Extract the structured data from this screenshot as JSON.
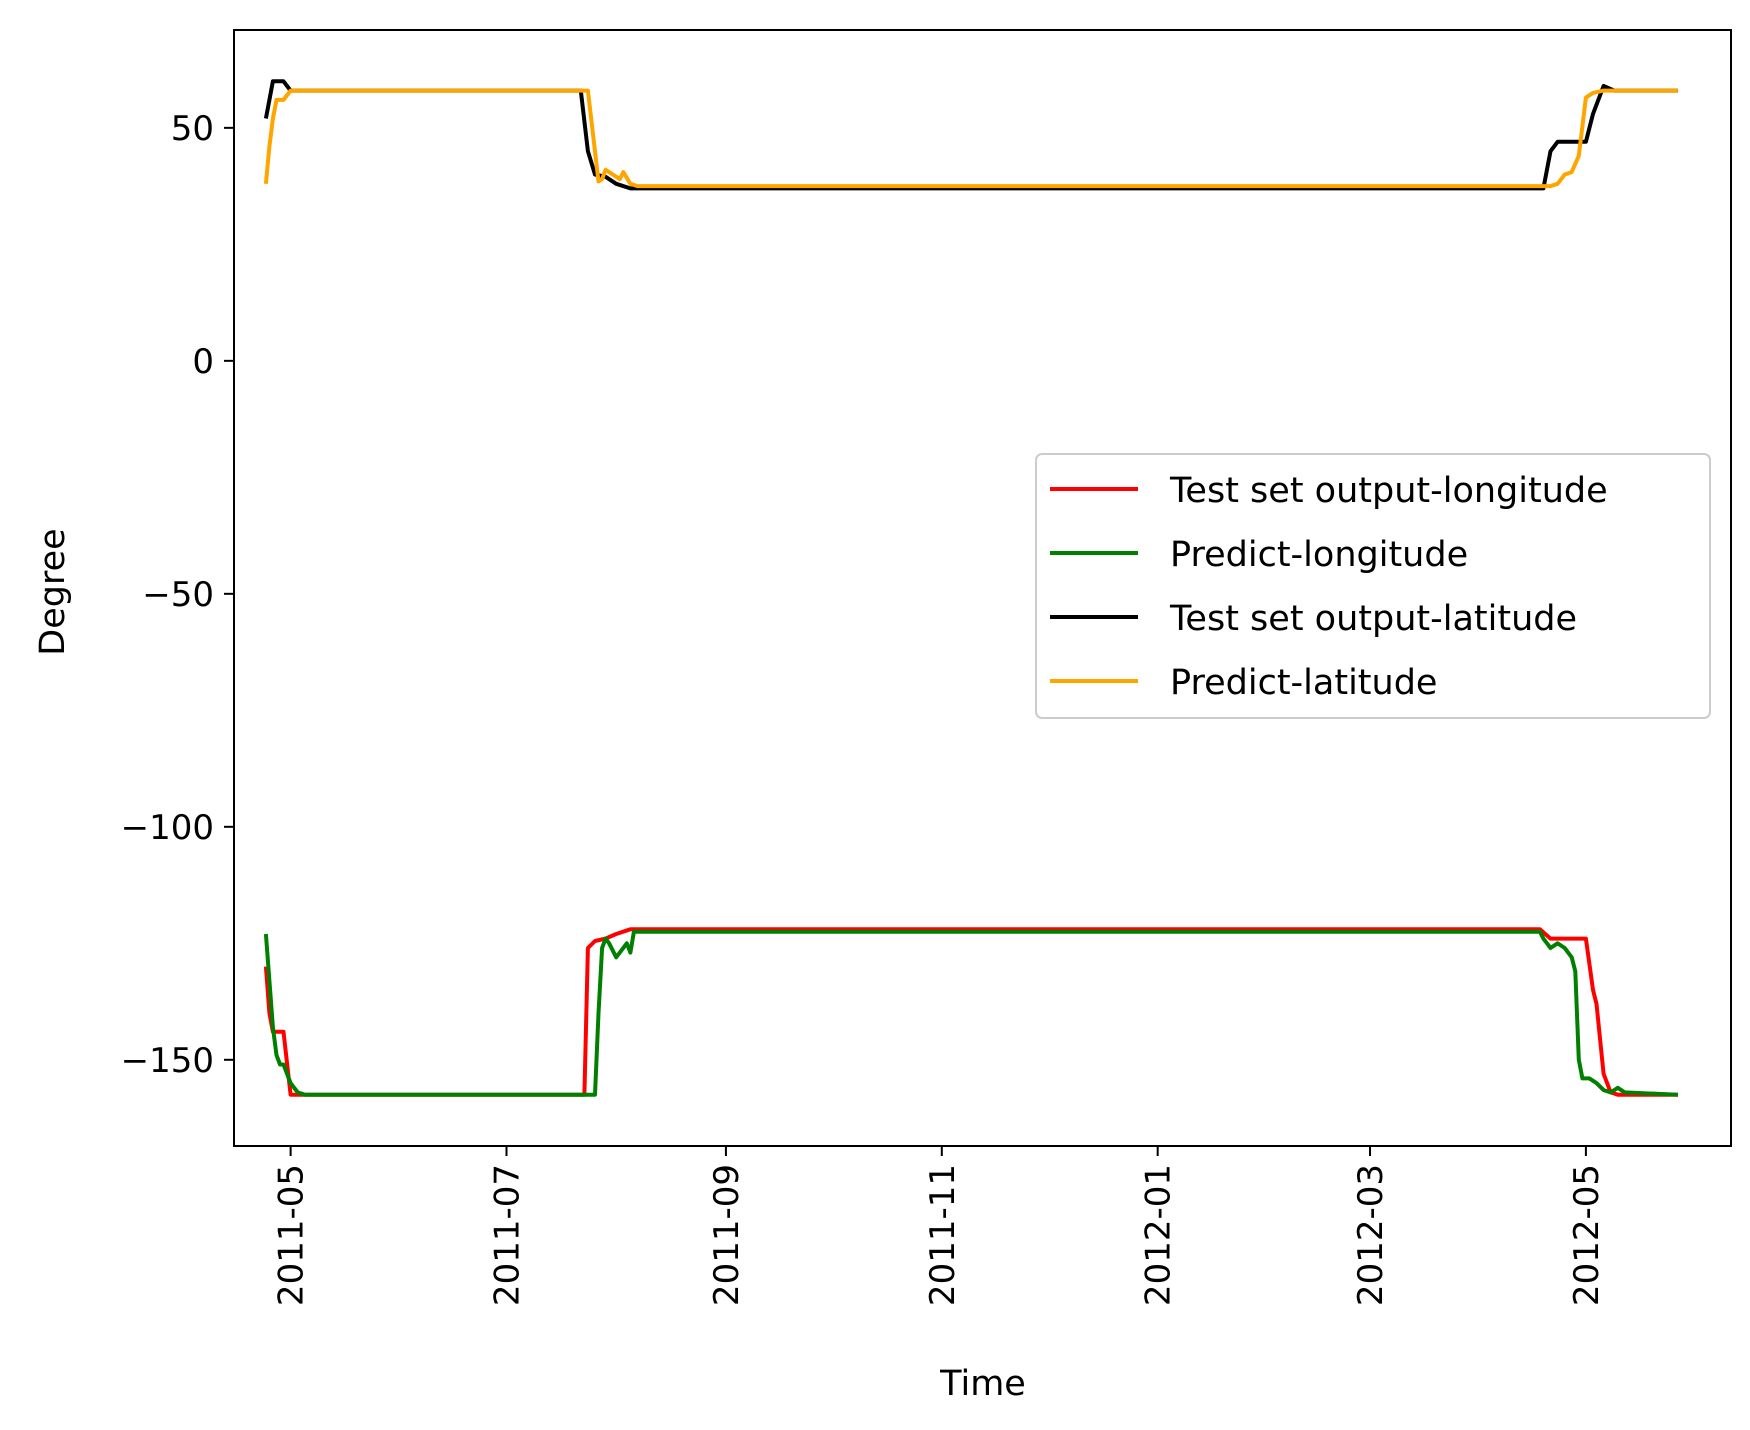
{
  "chart_data": {
    "type": "line",
    "title": "",
    "xlabel": "Time",
    "ylabel": "Degree",
    "x_type": "date",
    "xlim": [
      "2011-04-15",
      "2012-06-11"
    ],
    "ylim": [
      -168.5,
      71
    ],
    "grid": false,
    "legend_position": "center-right",
    "x_ticks": [
      "2011-05",
      "2011-07",
      "2011-09",
      "2011-11",
      "2012-01",
      "2012-03",
      "2012-05"
    ],
    "x_tick_dates": [
      "2011-05-01",
      "2011-07-01",
      "2011-09-01",
      "2011-11-01",
      "2012-01-01",
      "2012-03-01",
      "2012-05-01"
    ],
    "y_ticks": [
      50,
      0,
      -50,
      -100,
      -150
    ],
    "y_tick_labels": [
      "50",
      "0",
      "−50",
      "−100",
      "−150"
    ],
    "series": [
      {
        "name": "Test set output-longitude",
        "color": "#ff0000",
        "points": [
          [
            "2011-04-24",
            -130
          ],
          [
            "2011-04-25",
            -140
          ],
          [
            "2011-04-26",
            -144
          ],
          [
            "2011-04-29",
            -144
          ],
          [
            "2011-05-01",
            -157.5
          ],
          [
            "2011-05-10",
            -157.5
          ],
          [
            "2011-07-23",
            -157.5
          ],
          [
            "2011-07-24",
            -126
          ],
          [
            "2011-07-26",
            -124.5
          ],
          [
            "2011-07-29",
            -124
          ],
          [
            "2011-08-01",
            -123
          ],
          [
            "2011-08-05",
            -122
          ],
          [
            "2012-04-18",
            -122
          ],
          [
            "2012-04-21",
            -124
          ],
          [
            "2012-05-01",
            -124
          ],
          [
            "2012-05-03",
            -135
          ],
          [
            "2012-05-04",
            -138
          ],
          [
            "2012-05-06",
            -153
          ],
          [
            "2012-05-07",
            -155
          ],
          [
            "2012-05-08",
            -157
          ],
          [
            "2012-05-10",
            -157.5
          ],
          [
            "2012-05-27",
            -157.5
          ]
        ]
      },
      {
        "name": "Predict-longitude",
        "color": "#008000",
        "points": [
          [
            "2011-04-24",
            -123
          ],
          [
            "2011-04-25",
            -133
          ],
          [
            "2011-04-26",
            -143
          ],
          [
            "2011-04-27",
            -149
          ],
          [
            "2011-04-28",
            -151
          ],
          [
            "2011-04-29",
            -151
          ],
          [
            "2011-05-01",
            -155
          ],
          [
            "2011-05-03",
            -157
          ],
          [
            "2011-05-05",
            -157.5
          ],
          [
            "2011-07-26",
            -157.5
          ],
          [
            "2011-07-27",
            -140
          ],
          [
            "2011-07-28",
            -126
          ],
          [
            "2011-07-29",
            -124
          ],
          [
            "2011-07-30",
            -125
          ],
          [
            "2011-08-01",
            -128
          ],
          [
            "2011-08-04",
            -125
          ],
          [
            "2011-08-05",
            -127
          ],
          [
            "2011-08-06",
            -122.5
          ],
          [
            "2012-04-18",
            -122.5
          ],
          [
            "2012-04-19",
            -124
          ],
          [
            "2012-04-20",
            -125
          ],
          [
            "2012-04-21",
            -126
          ],
          [
            "2012-04-23",
            -125
          ],
          [
            "2012-04-25",
            -126
          ],
          [
            "2012-04-27",
            -128
          ],
          [
            "2012-04-28",
            -131
          ],
          [
            "2012-04-29",
            -150
          ],
          [
            "2012-04-30",
            -154
          ],
          [
            "2012-05-02",
            -154
          ],
          [
            "2012-05-04",
            -155
          ],
          [
            "2012-05-06",
            -156.5
          ],
          [
            "2012-05-08",
            -157
          ],
          [
            "2012-05-10",
            -156
          ],
          [
            "2012-05-12",
            -157
          ],
          [
            "2012-05-27",
            -157.5
          ]
        ]
      },
      {
        "name": "Test set output-latitude",
        "color": "#000000",
        "points": [
          [
            "2011-04-24",
            52
          ],
          [
            "2011-04-26",
            60
          ],
          [
            "2011-04-29",
            60
          ],
          [
            "2011-05-01",
            58
          ],
          [
            "2011-07-22",
            58
          ],
          [
            "2011-07-24",
            45
          ],
          [
            "2011-07-26",
            40
          ],
          [
            "2011-07-29",
            39.5
          ],
          [
            "2011-08-01",
            38
          ],
          [
            "2011-08-05",
            37
          ],
          [
            "2012-04-19",
            37
          ],
          [
            "2012-04-21",
            45
          ],
          [
            "2012-04-23",
            47
          ],
          [
            "2012-05-01",
            47
          ],
          [
            "2012-05-03",
            53
          ],
          [
            "2012-05-05",
            57
          ],
          [
            "2012-05-06",
            59
          ],
          [
            "2012-05-09",
            58
          ],
          [
            "2012-05-27",
            58
          ]
        ]
      },
      {
        "name": "Predict-latitude",
        "color": "#ffa500",
        "points": [
          [
            "2011-04-24",
            38
          ],
          [
            "2011-04-25",
            46
          ],
          [
            "2011-04-26",
            52
          ],
          [
            "2011-04-27",
            56
          ],
          [
            "2011-04-29",
            56
          ],
          [
            "2011-05-01",
            58
          ],
          [
            "2011-07-24",
            58
          ],
          [
            "2011-07-27",
            38.5
          ],
          [
            "2011-07-28",
            39
          ],
          [
            "2011-07-29",
            41
          ],
          [
            "2011-08-02",
            39
          ],
          [
            "2011-08-03",
            40.5
          ],
          [
            "2011-08-05",
            38
          ],
          [
            "2011-08-07",
            37.5
          ],
          [
            "2012-04-21",
            37.5
          ],
          [
            "2012-04-23",
            38
          ],
          [
            "2012-04-25",
            40
          ],
          [
            "2012-04-27",
            40.5
          ],
          [
            "2012-04-29",
            44
          ],
          [
            "2012-05-01",
            56.5
          ],
          [
            "2012-05-03",
            57.5
          ],
          [
            "2012-05-06",
            58
          ],
          [
            "2012-05-27",
            58
          ]
        ]
      }
    ]
  }
}
